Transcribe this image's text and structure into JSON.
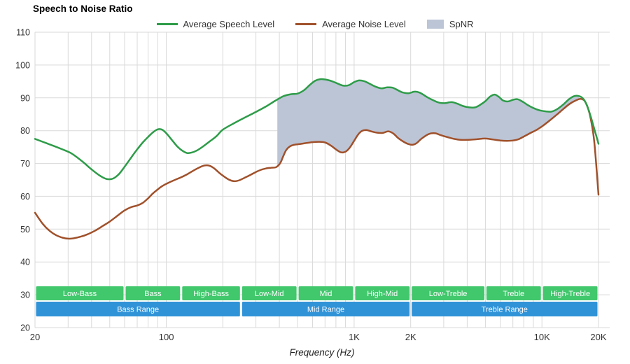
{
  "chart_data": {
    "type": "line",
    "title": "Speech to Noise Ratio",
    "xlabel": "Frequency (Hz)",
    "x_scale": "log",
    "x_range": [
      20,
      20000
    ],
    "y_range": [
      20,
      110
    ],
    "y_ticks": [
      20,
      30,
      40,
      50,
      60,
      70,
      80,
      90,
      100,
      110
    ],
    "x_ticks": [
      {
        "f": 20,
        "label": "20"
      },
      {
        "f": 100,
        "label": "100"
      },
      {
        "f": 1000,
        "label": "1K"
      },
      {
        "f": 2000,
        "label": "2K"
      },
      {
        "f": 10000,
        "label": "10K"
      },
      {
        "f": 20000,
        "label": "20K"
      }
    ],
    "grid_color": "#d9d9d9",
    "axis_text_color": "#333333",
    "series": [
      {
        "name": "Average Speech Level",
        "color": "#2e9c49",
        "points": [
          [
            20,
            77.5
          ],
          [
            22,
            76.6
          ],
          [
            25,
            75.4
          ],
          [
            28,
            74.3
          ],
          [
            31,
            73.2
          ],
          [
            34,
            71.6
          ],
          [
            37,
            69.9
          ],
          [
            40,
            68.2
          ],
          [
            44,
            66.4
          ],
          [
            48,
            65.3
          ],
          [
            52,
            65.4
          ],
          [
            56,
            66.8
          ],
          [
            60,
            69
          ],
          [
            65,
            71.8
          ],
          [
            70,
            74.3
          ],
          [
            75,
            76.4
          ],
          [
            80,
            78.1
          ],
          [
            85,
            79.5
          ],
          [
            90,
            80.4
          ],
          [
            95,
            80.3
          ],
          [
            100,
            79.2
          ],
          [
            107,
            77.2
          ],
          [
            114,
            75.3
          ],
          [
            121,
            74
          ],
          [
            129,
            73.2
          ],
          [
            138,
            73.4
          ],
          [
            147,
            74.1
          ],
          [
            157,
            75.2
          ],
          [
            170,
            76.7
          ],
          [
            185,
            78.3
          ],
          [
            200,
            80.3
          ],
          [
            230,
            82.3
          ],
          [
            260,
            83.9
          ],
          [
            300,
            85.7
          ],
          [
            340,
            87.4
          ],
          [
            380,
            89.1
          ],
          [
            420,
            90.5
          ],
          [
            460,
            91.1
          ],
          [
            500,
            91.3
          ],
          [
            540,
            92.3
          ],
          [
            580,
            93.9
          ],
          [
            620,
            95.2
          ],
          [
            660,
            95.7
          ],
          [
            700,
            95.6
          ],
          [
            760,
            95.1
          ],
          [
            820,
            94.3
          ],
          [
            880,
            93.7
          ],
          [
            940,
            93.9
          ],
          [
            1000,
            94.8
          ],
          [
            1060,
            95.3
          ],
          [
            1130,
            95.1
          ],
          [
            1200,
            94.4
          ],
          [
            1300,
            93.4
          ],
          [
            1400,
            92.9
          ],
          [
            1500,
            93.2
          ],
          [
            1600,
            93.1
          ],
          [
            1700,
            92.4
          ],
          [
            1800,
            91.7
          ],
          [
            1950,
            91.4
          ],
          [
            2100,
            91.9
          ],
          [
            2250,
            91.5
          ],
          [
            2450,
            90.2
          ],
          [
            2650,
            89.2
          ],
          [
            2850,
            88.5
          ],
          [
            3050,
            88.4
          ],
          [
            3300,
            88.7
          ],
          [
            3550,
            88.2
          ],
          [
            3800,
            87.5
          ],
          [
            4100,
            87.1
          ],
          [
            4400,
            87.1
          ],
          [
            4700,
            87.9
          ],
          [
            5000,
            89
          ],
          [
            5300,
            90.4
          ],
          [
            5600,
            91
          ],
          [
            5900,
            90.3
          ],
          [
            6200,
            89.2
          ],
          [
            6600,
            88.9
          ],
          [
            7000,
            89.4
          ],
          [
            7400,
            89.6
          ],
          [
            7900,
            88.8
          ],
          [
            8400,
            87.8
          ],
          [
            9000,
            86.9
          ],
          [
            9700,
            86.2
          ],
          [
            10400,
            85.9
          ],
          [
            11200,
            85.8
          ],
          [
            12000,
            86.5
          ],
          [
            13000,
            88
          ],
          [
            14000,
            89.7
          ],
          [
            15000,
            90.6
          ],
          [
            16000,
            90.4
          ],
          [
            16800,
            89.3
          ],
          [
            17600,
            86.8
          ],
          [
            18400,
            83.3
          ],
          [
            19200,
            79.6
          ],
          [
            20000,
            76
          ]
        ]
      },
      {
        "name": "Average Noise Level",
        "color": "#a0512b",
        "points": [
          [
            20,
            55
          ],
          [
            22,
            51.6
          ],
          [
            24,
            49.4
          ],
          [
            26,
            48.1
          ],
          [
            28,
            47.4
          ],
          [
            30,
            47.1
          ],
          [
            32,
            47.2
          ],
          [
            35,
            47.7
          ],
          [
            38,
            48.4
          ],
          [
            42,
            49.6
          ],
          [
            46,
            51
          ],
          [
            50,
            52.3
          ],
          [
            55,
            54.1
          ],
          [
            60,
            55.7
          ],
          [
            65,
            56.7
          ],
          [
            70,
            57.2
          ],
          [
            75,
            58
          ],
          [
            80,
            59.4
          ],
          [
            85,
            60.9
          ],
          [
            90,
            62.1
          ],
          [
            95,
            63.1
          ],
          [
            100,
            63.8
          ],
          [
            110,
            64.9
          ],
          [
            120,
            65.8
          ],
          [
            130,
            66.8
          ],
          [
            140,
            67.9
          ],
          [
            150,
            68.8
          ],
          [
            160,
            69.4
          ],
          [
            170,
            69.3
          ],
          [
            180,
            68.5
          ],
          [
            190,
            67.3
          ],
          [
            200,
            66.3
          ],
          [
            215,
            65.1
          ],
          [
            230,
            64.6
          ],
          [
            245,
            64.9
          ],
          [
            260,
            65.6
          ],
          [
            280,
            66.5
          ],
          [
            300,
            67.4
          ],
          [
            320,
            68.1
          ],
          [
            340,
            68.5
          ],
          [
            360,
            68.7
          ],
          [
            385,
            68.9
          ],
          [
            405,
            70.2
          ],
          [
            420,
            72.3
          ],
          [
            435,
            74.1
          ],
          [
            455,
            75.2
          ],
          [
            480,
            75.7
          ],
          [
            510,
            75.9
          ],
          [
            550,
            76.2
          ],
          [
            600,
            76.5
          ],
          [
            650,
            76.6
          ],
          [
            700,
            76.4
          ],
          [
            750,
            75.5
          ],
          [
            800,
            74.3
          ],
          [
            850,
            73.4
          ],
          [
            900,
            73.6
          ],
          [
            950,
            74.9
          ],
          [
            1000,
            76.9
          ],
          [
            1050,
            78.8
          ],
          [
            1100,
            79.9
          ],
          [
            1160,
            80.2
          ],
          [
            1230,
            79.8
          ],
          [
            1320,
            79.4
          ],
          [
            1420,
            79.3
          ],
          [
            1520,
            79.8
          ],
          [
            1620,
            79.1
          ],
          [
            1720,
            77.7
          ],
          [
            1850,
            76.5
          ],
          [
            1950,
            75.9
          ],
          [
            2050,
            75.7
          ],
          [
            2150,
            76.2
          ],
          [
            2300,
            77.7
          ],
          [
            2500,
            79
          ],
          [
            2700,
            79.2
          ],
          [
            2900,
            78.6
          ],
          [
            3150,
            78
          ],
          [
            3400,
            77.5
          ],
          [
            3700,
            77.2
          ],
          [
            4000,
            77.2
          ],
          [
            4500,
            77.4
          ],
          [
            5000,
            77.6
          ],
          [
            5500,
            77.3
          ],
          [
            6000,
            77
          ],
          [
            6500,
            76.9
          ],
          [
            7000,
            77
          ],
          [
            7500,
            77.4
          ],
          [
            8000,
            78.2
          ],
          [
            8700,
            79.3
          ],
          [
            9400,
            80.3
          ],
          [
            10000,
            81.3
          ],
          [
            11000,
            83.1
          ],
          [
            12000,
            84.9
          ],
          [
            13000,
            86.6
          ],
          [
            14000,
            88.1
          ],
          [
            15000,
            89.1
          ],
          [
            16000,
            89.7
          ],
          [
            16800,
            89.2
          ],
          [
            17500,
            87.2
          ],
          [
            18200,
            83.5
          ],
          [
            19000,
            76.5
          ],
          [
            20000,
            60.5
          ]
        ]
      }
    ],
    "spnr": {
      "name": "SpNR",
      "color": "#bcc5d6",
      "from": 390,
      "to": 15800
    },
    "bands": {
      "rows": [
        {
          "color": "#41c76c",
          "items": [
            {
              "label": "Low-Bass",
              "from": 20,
              "to": 60
            },
            {
              "label": "Bass",
              "from": 60,
              "to": 120
            },
            {
              "label": "High-Bass",
              "from": 120,
              "to": 250
            },
            {
              "label": "Low-Mid",
              "from": 250,
              "to": 500
            },
            {
              "label": "Mid",
              "from": 500,
              "to": 1000
            },
            {
              "label": "High-Mid",
              "from": 1000,
              "to": 2000
            },
            {
              "label": "Low-Treble",
              "from": 2000,
              "to": 5000
            },
            {
              "label": "Treble",
              "from": 5000,
              "to": 10000
            },
            {
              "label": "High-Treble",
              "from": 10000,
              "to": 20000
            }
          ]
        },
        {
          "color": "#3093d8",
          "items": [
            {
              "label": "Bass Range",
              "from": 20,
              "to": 250
            },
            {
              "label": "Mid Range",
              "from": 250,
              "to": 2000
            },
            {
              "label": "Treble Range",
              "from": 2000,
              "to": 20000
            }
          ]
        }
      ]
    }
  }
}
